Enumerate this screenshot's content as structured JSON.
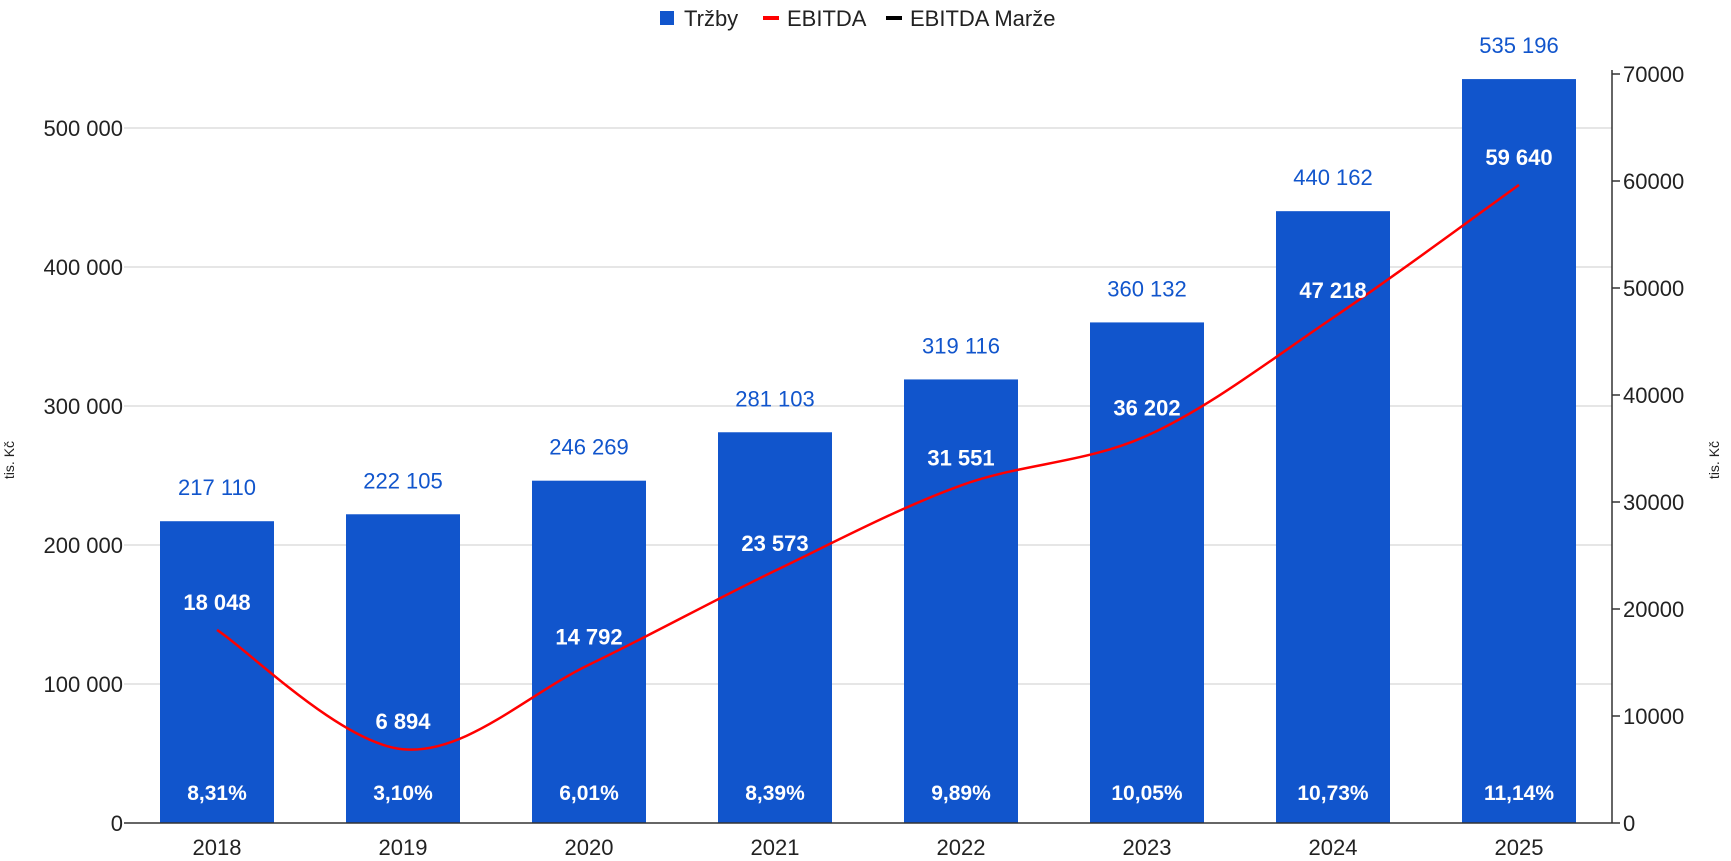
{
  "legend": [
    {
      "label": "Tržby",
      "color": "#1155cc",
      "marker": "square"
    },
    {
      "label": "EBITDA",
      "color": "#ff0000",
      "marker": "line"
    },
    {
      "label": "EBITDA Marže",
      "color": "#000000",
      "marker": "line"
    }
  ],
  "chart_data": {
    "type": "bar",
    "categories": [
      "2018",
      "2019",
      "2020",
      "2021",
      "2022",
      "2023",
      "2024",
      "2025"
    ],
    "series": [
      {
        "name": "Tržby",
        "type": "bar",
        "axis": "left",
        "color": "#1155cc",
        "values": [
          217110,
          222105,
          246269,
          281103,
          319116,
          360132,
          440162,
          535196
        ],
        "labels": [
          "217 110",
          "222 105",
          "246 269",
          "281 103",
          "319 116",
          "360 132",
          "440 162",
          "535 196"
        ]
      },
      {
        "name": "EBITDA",
        "type": "line",
        "axis": "right",
        "color": "#ff0000",
        "values": [
          18048,
          6894,
          14792,
          23573,
          31551,
          36202,
          47218,
          59640
        ],
        "labels": [
          "18 048",
          "6 894",
          "14 792",
          "23 573",
          "31 551",
          "36 202",
          "47 218",
          "59 640"
        ]
      },
      {
        "name": "EBITDA Marže",
        "type": "label",
        "color": "#000000",
        "values": [
          8.31,
          3.1,
          6.01,
          8.39,
          9.89,
          10.05,
          10.73,
          11.14
        ],
        "labels": [
          "8,31%",
          "3,10%",
          "6,01%",
          "8,39%",
          "9,89%",
          "10,05%",
          "10,73%",
          "11,14%"
        ]
      }
    ],
    "y_left": {
      "label": "tis. Kč",
      "ylim": [
        0,
        540000
      ],
      "ticks": [
        0,
        100000,
        200000,
        300000,
        400000,
        500000
      ],
      "tick_labels": [
        "0",
        "100 000",
        "200 000",
        "300 000",
        "400 000",
        "500 000"
      ]
    },
    "y_right": {
      "label": "tis. Kč",
      "ylim": [
        0,
        70000
      ],
      "ticks": [
        0,
        10000,
        20000,
        30000,
        40000,
        50000,
        60000,
        70000
      ],
      "tick_labels": [
        "0",
        "10000",
        "20000",
        "30000",
        "40000",
        "50000",
        "60000",
        "70000"
      ]
    },
    "grid": true,
    "legend_position": "top-center"
  }
}
